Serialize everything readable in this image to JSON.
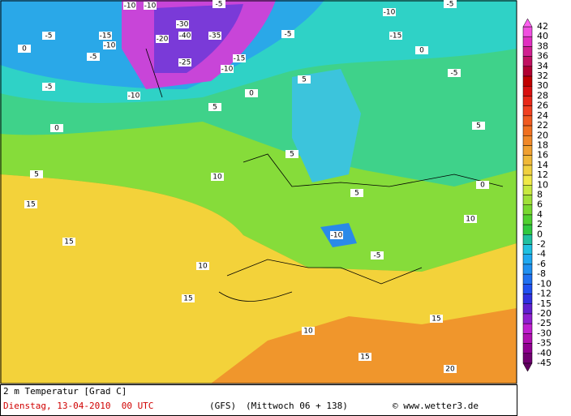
{
  "map": {
    "labels": [
      -10,
      -10,
      -5,
      -10,
      -5,
      -5,
      -15,
      -20,
      -35,
      -40,
      -5,
      -15,
      -10,
      -30,
      -15,
      -25,
      -10,
      -5,
      0,
      -5,
      -10,
      0,
      -5,
      5,
      0,
      5,
      5,
      10,
      0,
      15,
      15,
      -10,
      -5,
      5,
      10,
      15,
      10,
      15,
      20,
      15,
      5,
      0,
      5,
      10
    ]
  },
  "legend": {
    "labels": [
      42,
      40,
      38,
      36,
      34,
      32,
      30,
      28,
      26,
      24,
      22,
      20,
      18,
      16,
      14,
      12,
      10,
      8,
      6,
      4,
      2,
      0,
      -2,
      -4,
      -6,
      -8,
      -10,
      -12,
      -15,
      -20,
      -25,
      -30,
      -35,
      -40,
      -45
    ]
  },
  "footer": {
    "title": "2 m Temperatur [Grad C]",
    "date": "Dienstag, 13-04-2010  00 UTC",
    "model": "(GFS)",
    "run": "(Mittwoch 06 + 138)",
    "credit": "© www.wetter3.de"
  }
}
